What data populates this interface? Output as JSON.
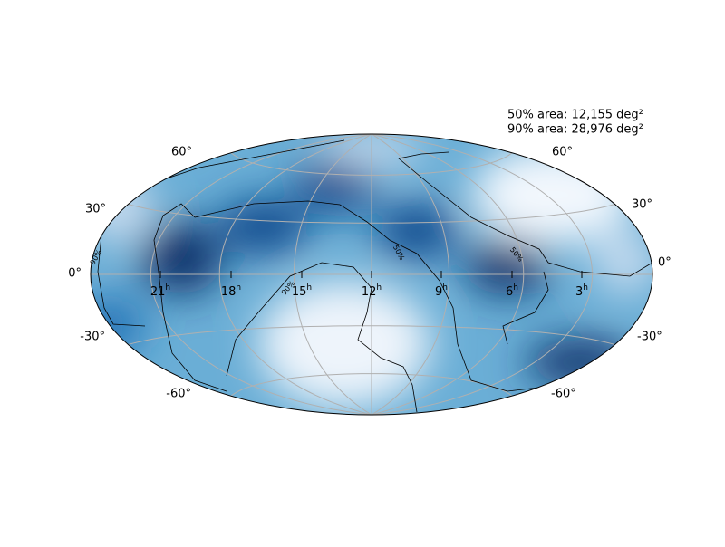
{
  "annotation": [
    "50% area: 12,155 deg²",
    "90% area: 28,976 deg²"
  ],
  "ra_labels": [
    {
      "text": "21",
      "sup": "h"
    },
    {
      "text": "18",
      "sup": "h"
    },
    {
      "text": "15",
      "sup": "h"
    },
    {
      "text": "12",
      "sup": "h"
    },
    {
      "text": "9",
      "sup": "h"
    },
    {
      "text": "6",
      "sup": "h"
    },
    {
      "text": "3",
      "sup": "h"
    }
  ],
  "dec_labels": [
    "60°",
    "30°",
    "0°",
    "-30°",
    "-60°"
  ],
  "contour_labels": [
    "50%",
    "50%",
    "90%",
    "90%"
  ]
}
